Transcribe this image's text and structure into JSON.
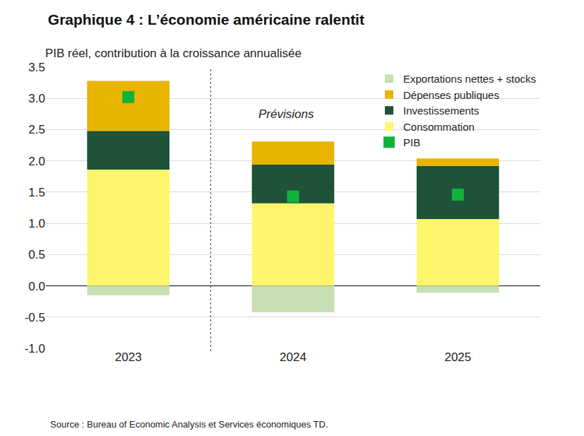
{
  "chart_data": {
    "type": "bar",
    "title": "Graphique 4 : L’économie américaine ralentit",
    "subtitle": "PIB réel, contribution à la croissance annualisée",
    "annotations": [
      "Prévisions"
    ],
    "source": "Source : Bureau of Economic Analysis et Services économiques TD.",
    "stacked": true,
    "grid": true,
    "legend": "top right",
    "categories": [
      "2023",
      "2024",
      "2025"
    ],
    "series": [
      {
        "name": "Consommation",
        "color": "#fff56d",
        "values": [
          1.86,
          1.32,
          1.07
        ]
      },
      {
        "name": "Investissements",
        "color": "#1e5338",
        "values": [
          0.62,
          0.62,
          0.85
        ]
      },
      {
        "name": "Dépenses publiques",
        "color": "#e8b400",
        "values": [
          0.8,
          0.37,
          0.12
        ]
      },
      {
        "name": "Exportations nettes + stocks",
        "color": "#c6e0b4",
        "values": [
          -0.15,
          -0.42,
          -0.11
        ]
      },
      {
        "name": "PIB",
        "type": "scatter",
        "marker": "square",
        "color": "#0fb33a",
        "values": [
          3.02,
          1.43,
          1.46
        ]
      }
    ],
    "ylim": [
      -1.0,
      3.5
    ],
    "yticks": [
      {
        "value": -1.0,
        "label": "-1.0"
      },
      -0.5,
      {
        "value": 0,
        "label": "0.0"
      },
      0.5,
      {
        "value": 1.0,
        "label": "1.0"
      },
      1.5,
      {
        "value": 2.0,
        "label": "2.0"
      },
      2.5,
      {
        "value": 3.0,
        "label": "3.0"
      },
      3.5
    ]
  }
}
